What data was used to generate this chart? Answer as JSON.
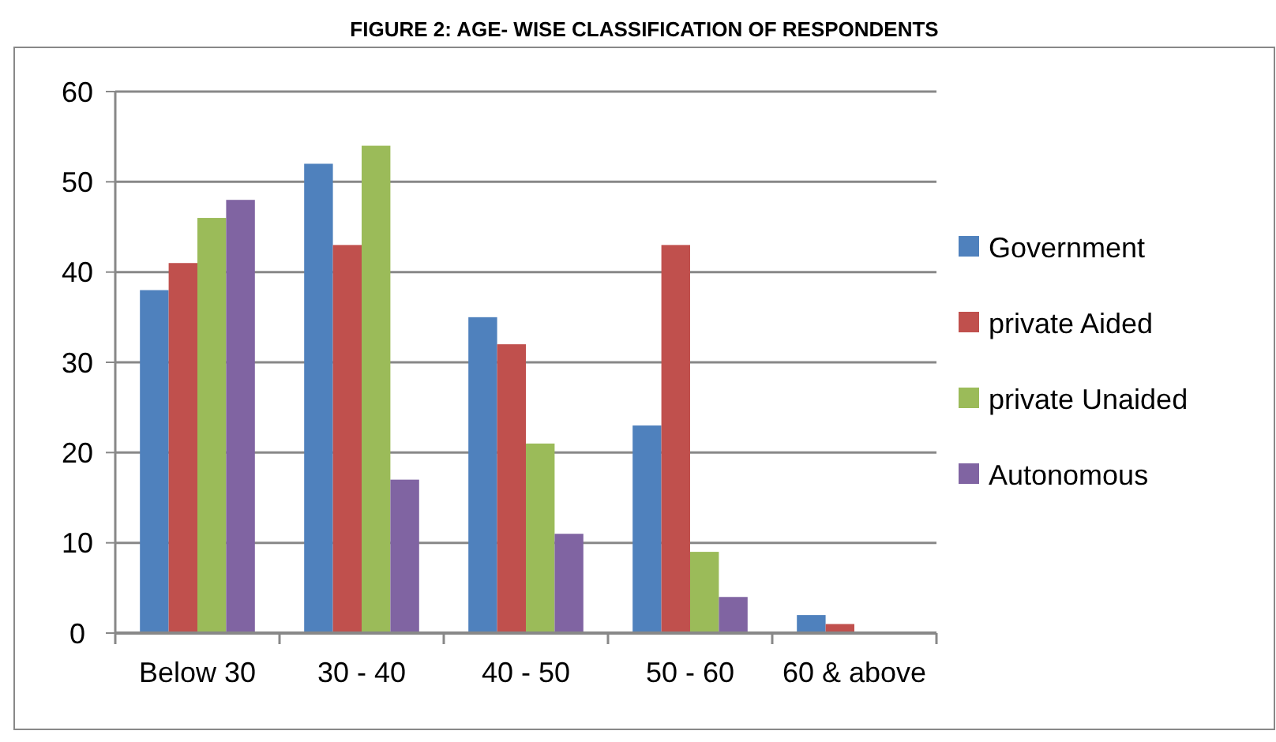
{
  "chart_data": {
    "type": "bar",
    "title": "FIGURE 2: AGE- WISE CLASSIFICATION OF RESPONDENTS",
    "categories": [
      "Below 30",
      "30 - 40",
      "40 - 50",
      "50 - 60",
      "60 & above"
    ],
    "series": [
      {
        "name": "Government",
        "color": "#4f81bd",
        "values": [
          38,
          52,
          35,
          23,
          2
        ]
      },
      {
        "name": "private Aided",
        "color": "#c0504d",
        "values": [
          41,
          43,
          32,
          43,
          1
        ]
      },
      {
        "name": "private Unaided",
        "color": "#9bbb59",
        "values": [
          46,
          54,
          21,
          9,
          0
        ]
      },
      {
        "name": "Autonomous",
        "color": "#8064a2",
        "values": [
          48,
          17,
          11,
          4,
          0
        ]
      }
    ],
    "ylim": [
      0,
      60
    ],
    "yticks": [
      0,
      10,
      20,
      30,
      40,
      50,
      60
    ],
    "grid": "y",
    "legend": "right"
  }
}
